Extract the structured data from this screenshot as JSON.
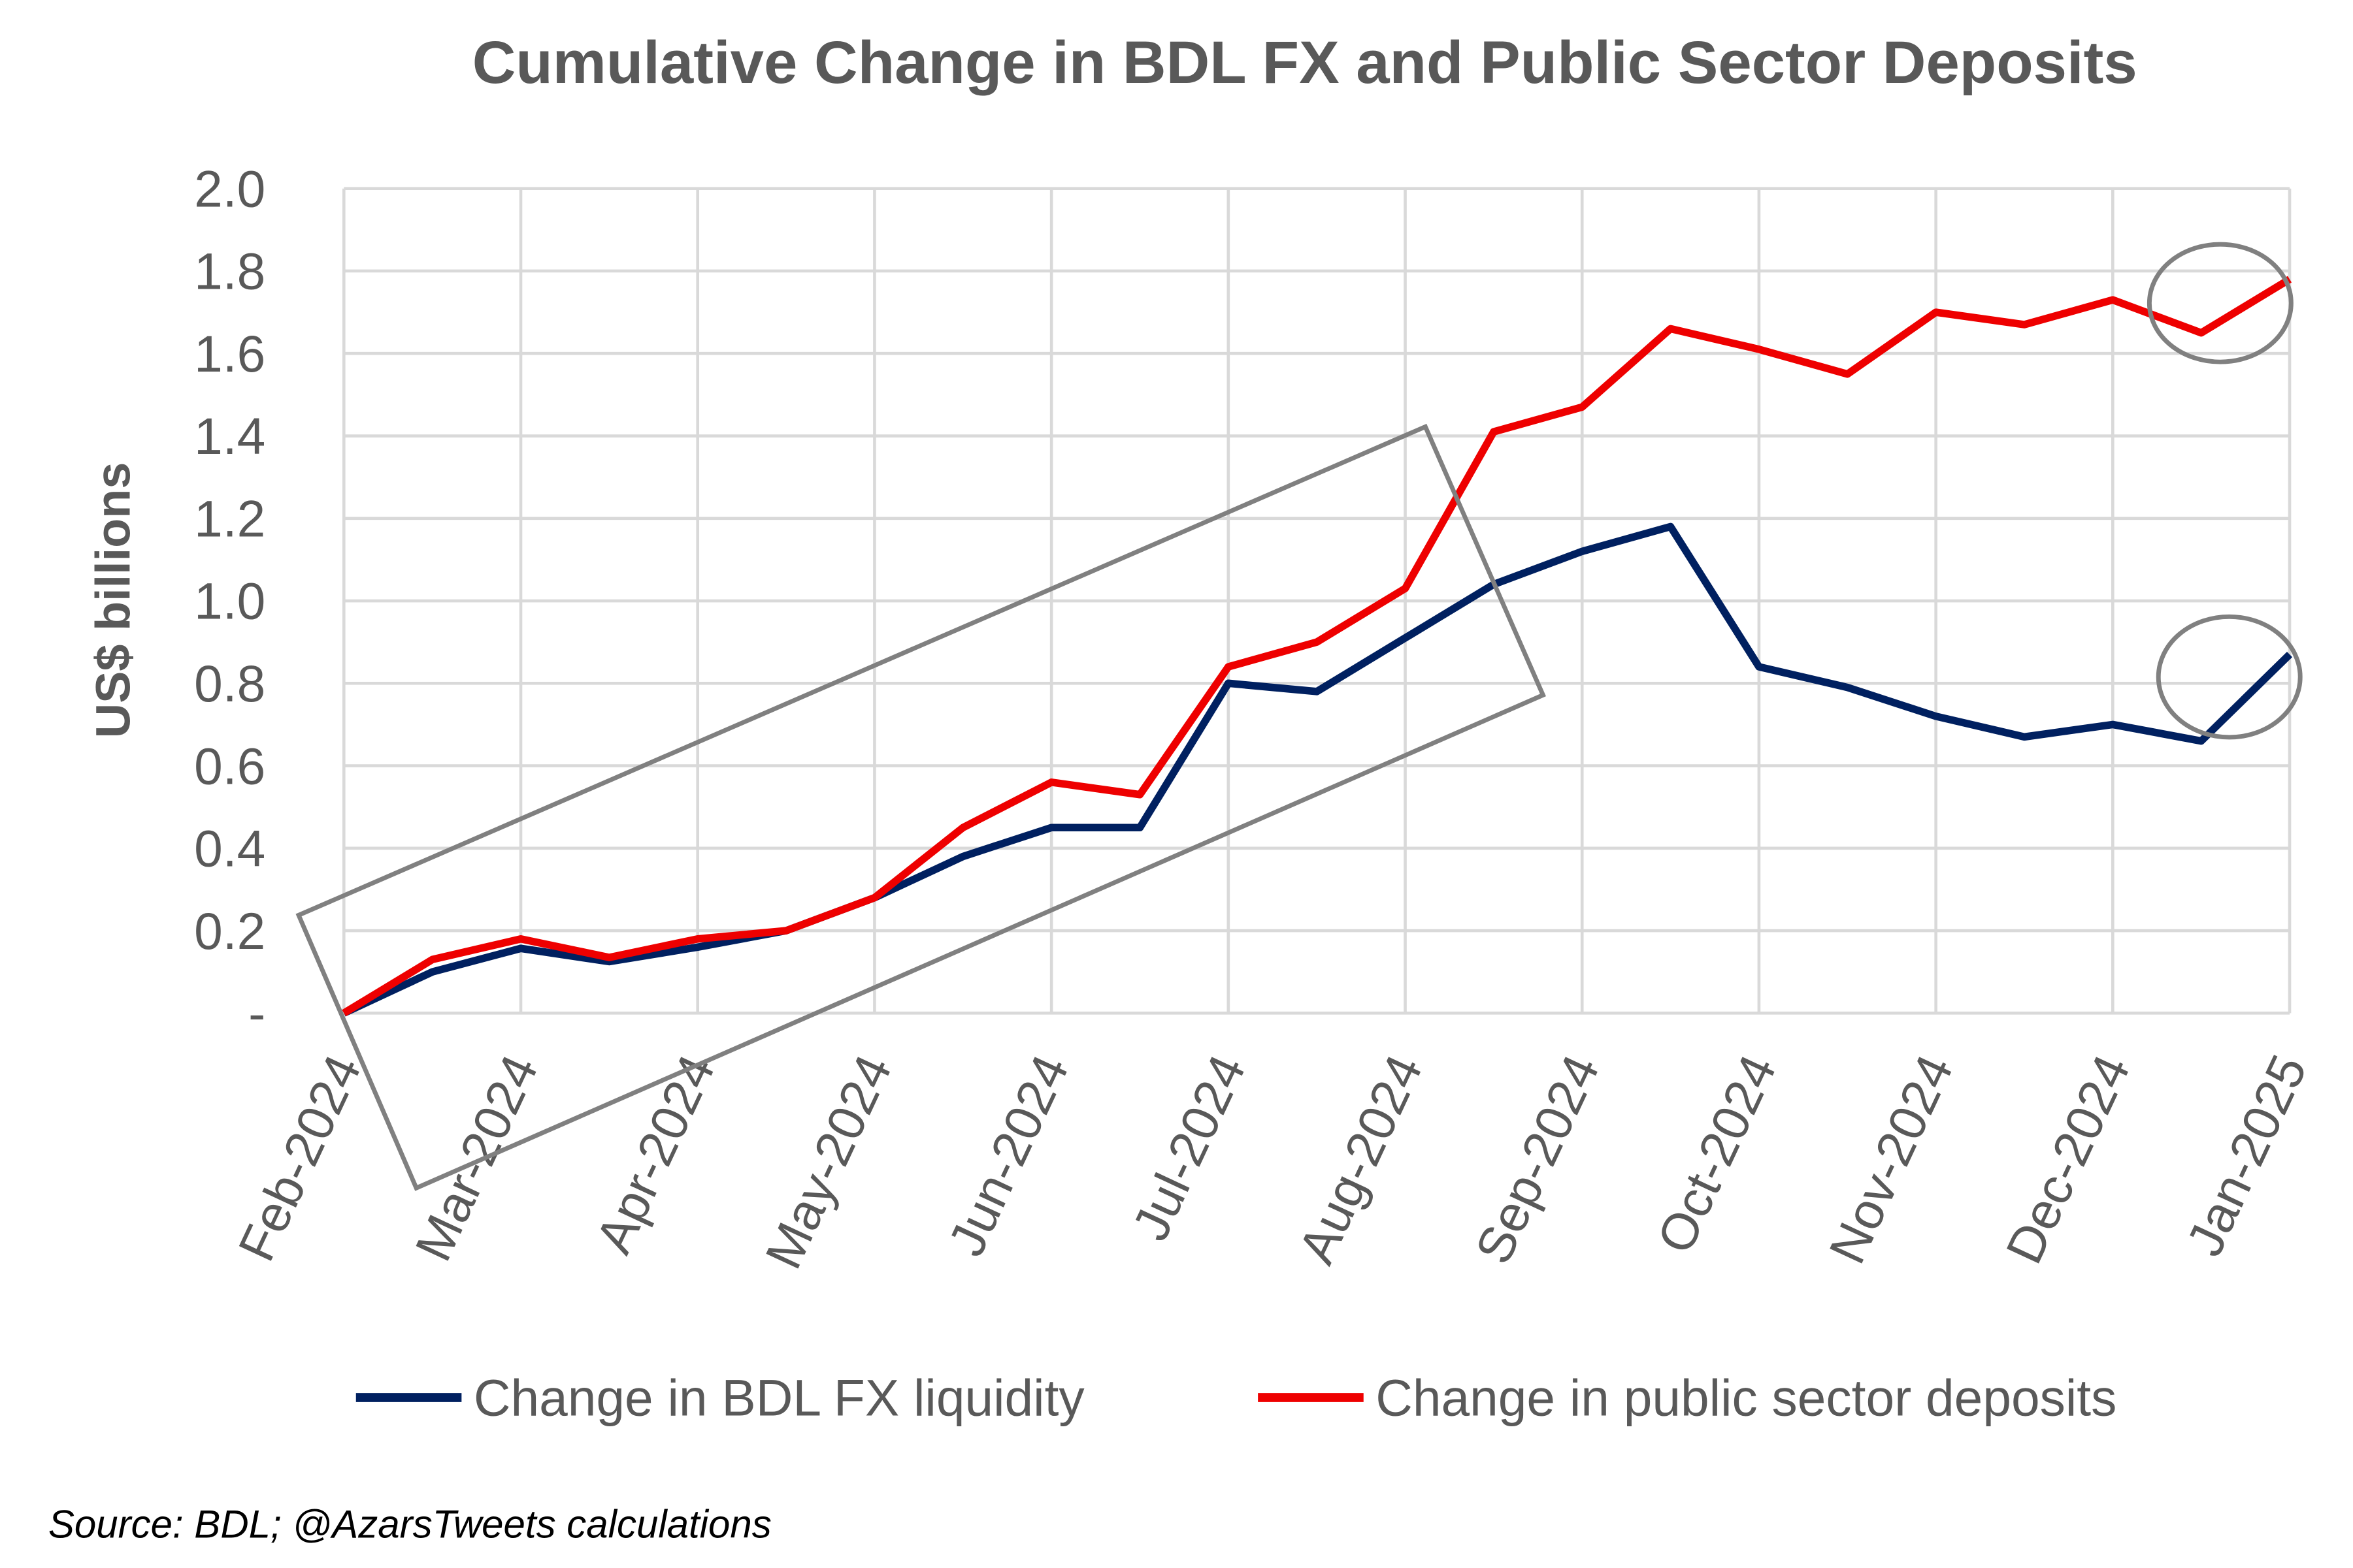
{
  "chart_data": {
    "type": "line",
    "title": "Cumulative Change in BDL FX and Public Sector Deposits",
    "ylabel": "US$ billions",
    "xlabel": "",
    "ylim": [
      0,
      2.0
    ],
    "yticks": [
      "-",
      "0.2",
      "0.4",
      "0.6",
      "0.8",
      "1.0",
      "1.2",
      "1.4",
      "1.6",
      "1.8",
      "2.0"
    ],
    "xtick_labels": [
      "Feb-2024",
      "Mar-2024",
      "Apr-2024",
      "May-2024",
      "Jun-2024",
      "Jul-2024",
      "Aug-2024",
      "Sep-2024",
      "Oct-2024",
      "Nov-2024",
      "Dec-2024",
      "Jan-2025"
    ],
    "grid": true,
    "legend_placement": "bottom",
    "series": [
      {
        "name": "Change in BDL FX liquidity",
        "color": "#002060",
        "values": [
          0,
          0.1,
          0.157,
          0.125,
          0.16,
          0.2,
          0.28,
          0.38,
          0.45,
          0.45,
          0.8,
          0.78,
          0.91,
          1.04,
          1.12,
          1.18,
          0.84,
          0.79,
          0.72,
          0.67,
          0.7,
          0.66,
          0.87
        ]
      },
      {
        "name": "Change in public sector deposits",
        "color": "#ee0000",
        "values": [
          0,
          0.13,
          0.18,
          0.135,
          0.18,
          0.2,
          0.28,
          0.45,
          0.56,
          0.53,
          0.84,
          0.9,
          1.03,
          1.41,
          1.47,
          1.66,
          1.61,
          1.55,
          1.7,
          1.67,
          1.73,
          1.65,
          1.78
        ]
      }
    ],
    "annotations": [
      "rotated rectangle around Feb-Aug 2024 period",
      "circles around Jan-2025 end points"
    ]
  },
  "source": "Source: BDL; @AzarsTweets calculations"
}
